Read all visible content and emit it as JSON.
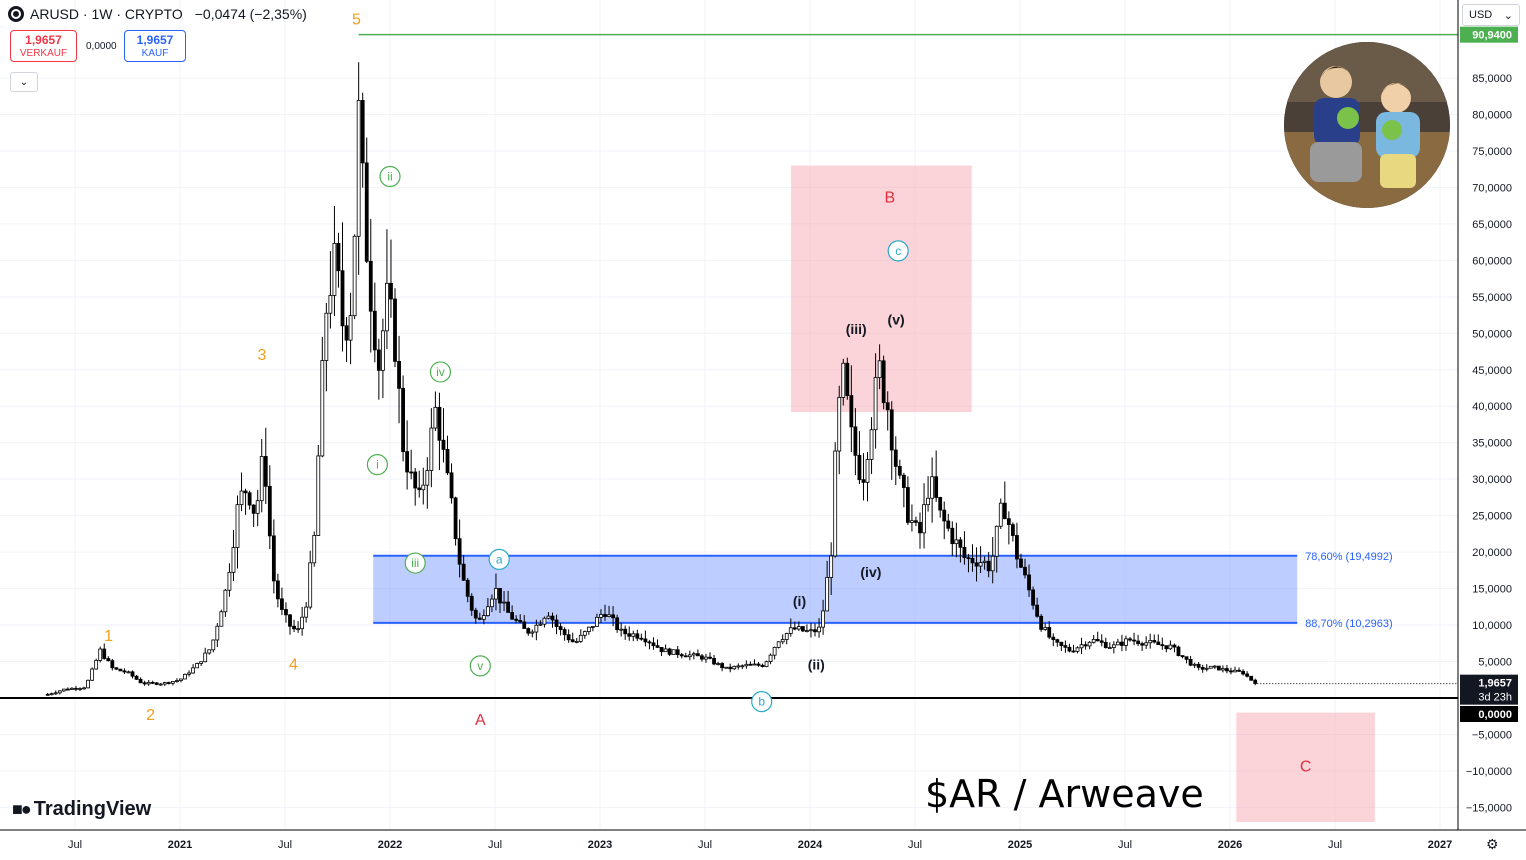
{
  "header": {
    "symbol": "ARUSD · 1W · CRYPTO",
    "change": "−0,0474 (−2,35%)"
  },
  "trade": {
    "sell_price": "1,9657",
    "sell_label": "VERKAUF",
    "spread": "0,0000",
    "buy_price": "1,9657",
    "buy_label": "KAUF"
  },
  "currency": "USD",
  "logo_text": "TradingView",
  "chart_title": "$AR / Arweave",
  "colors": {
    "up": "#000000",
    "grid": "#f0f3fa",
    "fib_band": "rgba(100,135,255,0.42)",
    "fib_line": "#2962ff",
    "box": "rgba(246,160,170,0.45)",
    "top_line": "#4caf50",
    "primary_wave": "#f0a020",
    "minor_wave": "#4caf50",
    "sub_wave": "#2aa8c8",
    "major_wave": "#e03040"
  },
  "chart_data": {
    "type": "candlestick",
    "title": "$AR / Arweave",
    "ylim": [
      -17000,
      95000
    ],
    "y_ticks": [
      {
        "v": 85000,
        "label": "85,0000"
      },
      {
        "v": 80000,
        "label": "80,0000"
      },
      {
        "v": 75000,
        "label": "75,0000"
      },
      {
        "v": 70000,
        "label": "70,0000"
      },
      {
        "v": 65000,
        "label": "65,0000"
      },
      {
        "v": 60000,
        "label": "60,0000"
      },
      {
        "v": 55000,
        "label": "55,0000"
      },
      {
        "v": 50000,
        "label": "50,0000"
      },
      {
        "v": 45000,
        "label": "45,0000"
      },
      {
        "v": 40000,
        "label": "40,0000"
      },
      {
        "v": 35000,
        "label": "35,0000"
      },
      {
        "v": 30000,
        "label": "30,0000"
      },
      {
        "v": 25000,
        "label": "25,0000"
      },
      {
        "v": 20000,
        "label": "20,0000"
      },
      {
        "v": 15000,
        "label": "15,0000"
      },
      {
        "v": 10000,
        "label": "10,0000"
      },
      {
        "v": 5000,
        "label": "5,0000"
      },
      {
        "v": -5000,
        "label": "−5,0000"
      },
      {
        "v": -10000,
        "label": "−10,0000"
      },
      {
        "v": -15000,
        "label": "−15,0000"
      }
    ],
    "x_ticks": [
      {
        "t": 2020.5,
        "label": "Jul",
        "bold": false
      },
      {
        "t": 2021.0,
        "label": "2021",
        "bold": true
      },
      {
        "t": 2021.5,
        "label": "Jul",
        "bold": false
      },
      {
        "t": 2022.0,
        "label": "2022",
        "bold": true
      },
      {
        "t": 2022.5,
        "label": "Jul",
        "bold": false
      },
      {
        "t": 2023.0,
        "label": "2023",
        "bold": true
      },
      {
        "t": 2023.5,
        "label": "Jul",
        "bold": false
      },
      {
        "t": 2024.0,
        "label": "2024",
        "bold": true
      },
      {
        "t": 2024.5,
        "label": "Jul",
        "bold": false
      },
      {
        "t": 2025.0,
        "label": "2025",
        "bold": true
      },
      {
        "t": 2025.5,
        "label": "Jul",
        "bold": false
      },
      {
        "t": 2026.0,
        "label": "2026",
        "bold": true
      },
      {
        "t": 2026.5,
        "label": "Jul",
        "bold": false
      },
      {
        "t": 2027.0,
        "label": "2027",
        "bold": true
      }
    ],
    "price_path": [
      [
        2020.37,
        500
      ],
      [
        2020.45,
        1200
      ],
      [
        2020.55,
        1500
      ],
      [
        2020.62,
        6500
      ],
      [
        2020.68,
        4000
      ],
      [
        2020.75,
        3500
      ],
      [
        2020.82,
        2000
      ],
      [
        2020.92,
        2000
      ],
      [
        2021.0,
        2500
      ],
      [
        2021.08,
        4500
      ],
      [
        2021.15,
        7000
      ],
      [
        2021.22,
        15000
      ],
      [
        2021.28,
        27000
      ],
      [
        2021.32,
        29000
      ],
      [
        2021.36,
        25000
      ],
      [
        2021.4,
        34000
      ],
      [
        2021.44,
        17000
      ],
      [
        2021.48,
        12000
      ],
      [
        2021.52,
        10000
      ],
      [
        2021.56,
        9000
      ],
      [
        2021.6,
        13000
      ],
      [
        2021.64,
        22000
      ],
      [
        2021.67,
        40000
      ],
      [
        2021.7,
        55000
      ],
      [
        2021.74,
        60000
      ],
      [
        2021.78,
        50000
      ],
      [
        2021.82,
        55000
      ],
      [
        2021.85,
        80000
      ],
      [
        2021.88,
        65000
      ],
      [
        2021.91,
        55000
      ],
      [
        2021.95,
        45000
      ],
      [
        2021.98,
        55000
      ],
      [
        2022.02,
        50000
      ],
      [
        2022.06,
        35000
      ],
      [
        2022.1,
        30000
      ],
      [
        2022.14,
        27000
      ],
      [
        2022.18,
        33000
      ],
      [
        2022.22,
        40000
      ],
      [
        2022.26,
        32000
      ],
      [
        2022.3,
        25000
      ],
      [
        2022.34,
        17000
      ],
      [
        2022.38,
        13000
      ],
      [
        2022.42,
        10000
      ],
      [
        2022.46,
        13000
      ],
      [
        2022.5,
        15000
      ],
      [
        2022.55,
        12000
      ],
      [
        2022.6,
        10500
      ],
      [
        2022.65,
        9000
      ],
      [
        2022.7,
        10000
      ],
      [
        2022.75,
        12000
      ],
      [
        2022.8,
        9500
      ],
      [
        2022.88,
        7500
      ],
      [
        2022.95,
        9500
      ],
      [
        2023.02,
        12000
      ],
      [
        2023.1,
        9000
      ],
      [
        2023.2,
        8500
      ],
      [
        2023.3,
        6500
      ],
      [
        2023.4,
        6000
      ],
      [
        2023.5,
        5500
      ],
      [
        2023.6,
        4000
      ],
      [
        2023.7,
        4500
      ],
      [
        2023.78,
        4500
      ],
      [
        2023.85,
        8000
      ],
      [
        2023.92,
        9500
      ],
      [
        2024.0,
        9000
      ],
      [
        2024.05,
        9500
      ],
      [
        2024.1,
        20000
      ],
      [
        2024.13,
        38000
      ],
      [
        2024.16,
        44000
      ],
      [
        2024.2,
        35000
      ],
      [
        2024.25,
        30000
      ],
      [
        2024.29,
        38000
      ],
      [
        2024.33,
        45000
      ],
      [
        2024.37,
        40000
      ],
      [
        2024.42,
        30000
      ],
      [
        2024.47,
        25000
      ],
      [
        2024.52,
        22000
      ],
      [
        2024.57,
        30000
      ],
      [
        2024.62,
        25000
      ],
      [
        2024.68,
        22000
      ],
      [
        2024.74,
        19000
      ],
      [
        2024.8,
        19000
      ],
      [
        2024.86,
        18000
      ],
      [
        2024.92,
        27000
      ],
      [
        2024.98,
        20000
      ],
      [
        2025.04,
        15000
      ],
      [
        2025.1,
        10000
      ],
      [
        2025.16,
        7500
      ],
      [
        2025.24,
        6500
      ],
      [
        2025.34,
        8000
      ],
      [
        2025.44,
        7000
      ],
      [
        2025.52,
        8000
      ],
      [
        2025.62,
        7500
      ],
      [
        2025.72,
        7000
      ],
      [
        2025.8,
        5000
      ],
      [
        2025.85,
        4000
      ],
      [
        2025.92,
        4200
      ],
      [
        2026.0,
        3700
      ],
      [
        2026.06,
        3500
      ],
      [
        2026.1,
        2500
      ],
      [
        2026.13,
        1966
      ]
    ],
    "current_price": {
      "value": 1966,
      "label": "1,9657",
      "countdown": "3d 23h"
    },
    "zero_line": {
      "value": 0,
      "label": "0,0000"
    },
    "top_line": {
      "value": 90940,
      "label": "90,9400",
      "t_start": 2021.85
    },
    "fib_levels": [
      {
        "value": 19499,
        "label": "78,60% (19,4992)"
      },
      {
        "value": 10296,
        "label": "88,70% (10,2963)"
      }
    ],
    "fib_band": {
      "t_start": 2021.92,
      "t_end": 2026.32
    },
    "boxes": [
      {
        "t1": 2023.91,
        "t2": 2024.77,
        "v1": 39200,
        "v2": 73000,
        "label": "B"
      },
      {
        "t1": 2026.03,
        "t2": 2026.69,
        "v1": -17000,
        "v2": -2000,
        "label": "C"
      }
    ],
    "wave_labels": [
      {
        "text": "1",
        "t": 2020.66,
        "v": 8500,
        "style": "primary"
      },
      {
        "text": "2",
        "t": 2020.86,
        "v": -2300,
        "style": "primary"
      },
      {
        "text": "3",
        "t": 2021.39,
        "v": 47000,
        "style": "primary"
      },
      {
        "text": "4",
        "t": 2021.54,
        "v": 4600,
        "style": "primary"
      },
      {
        "text": "5",
        "t": 2021.84,
        "v": 93000,
        "style": "primary"
      },
      {
        "text": "i",
        "t": 2021.94,
        "v": 32000,
        "style": "minor"
      },
      {
        "text": "ii",
        "t": 2022.0,
        "v": 71500,
        "style": "minor"
      },
      {
        "text": "iii",
        "t": 2022.12,
        "v": 18500,
        "style": "minor"
      },
      {
        "text": "iv",
        "t": 2022.24,
        "v": 44700,
        "style": "minor"
      },
      {
        "text": "v",
        "t": 2022.43,
        "v": 4400,
        "style": "minor"
      },
      {
        "text": "a",
        "t": 2022.52,
        "v": 19000,
        "style": "sub"
      },
      {
        "text": "b",
        "t": 2023.77,
        "v": -500,
        "style": "sub"
      },
      {
        "text": "c",
        "t": 2024.42,
        "v": 61300,
        "style": "sub"
      },
      {
        "text": "A",
        "t": 2022.43,
        "v": -3000,
        "style": "major"
      },
      {
        "text": "B",
        "t": 2024.38,
        "v": 68600,
        "style": "major"
      },
      {
        "text": "C",
        "t": 2026.36,
        "v": -9400,
        "style": "major"
      },
      {
        "text": "(i)",
        "t": 2023.95,
        "v": 13300,
        "style": "black"
      },
      {
        "text": "(ii)",
        "t": 2024.03,
        "v": 4600,
        "style": "black"
      },
      {
        "text": "(iii)",
        "t": 2024.22,
        "v": 50600,
        "style": "black"
      },
      {
        "text": "(iv)",
        "t": 2024.29,
        "v": 17300,
        "style": "black"
      },
      {
        "text": "(v)",
        "t": 2024.41,
        "v": 51900,
        "style": "black"
      }
    ]
  }
}
